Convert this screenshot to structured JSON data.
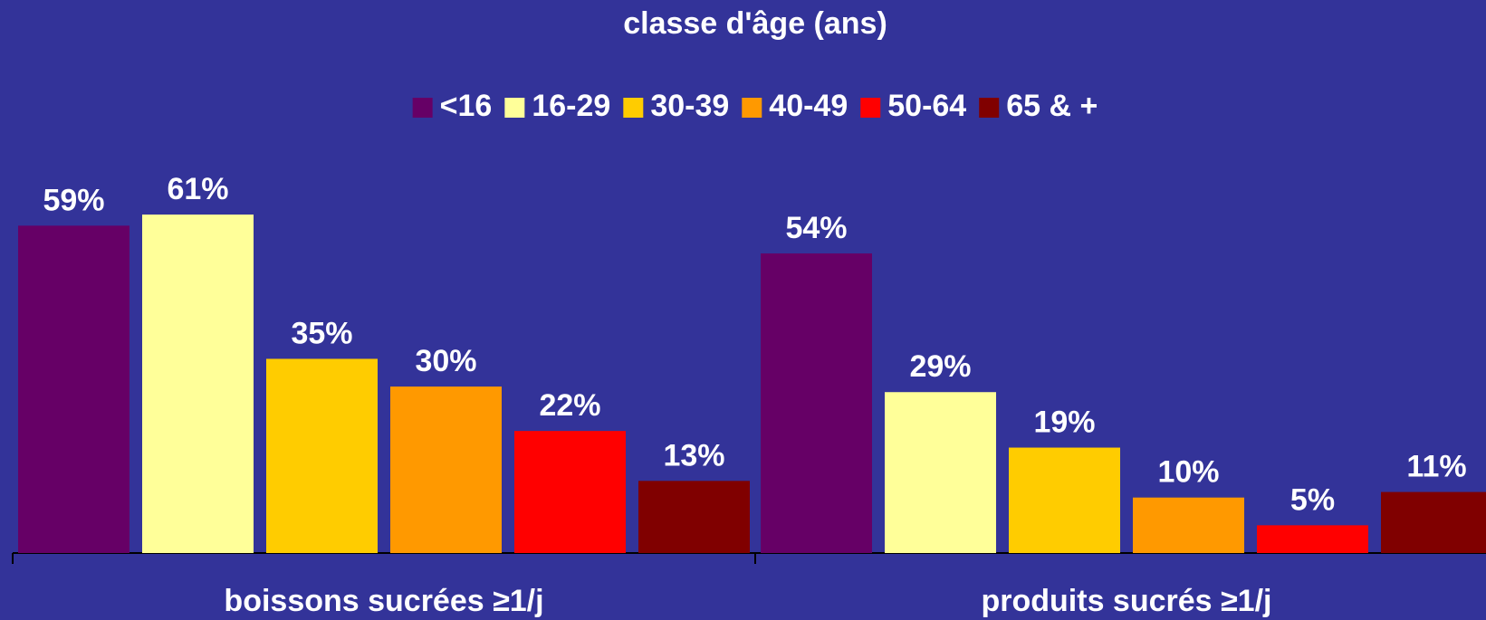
{
  "chart_data": {
    "type": "bar",
    "title": "classe d'âge (ans)",
    "categories": [
      "boissons sucrées ≥1/j",
      "produits sucrés ≥1/j"
    ],
    "series": [
      {
        "name": "<16",
        "color": "#660066",
        "values": [
          59,
          54
        ],
        "value_labels": [
          "59%",
          "54%"
        ]
      },
      {
        "name": "16-29",
        "color": "#FFFF99",
        "values": [
          61,
          29
        ],
        "value_labels": [
          "61%",
          "29%"
        ]
      },
      {
        "name": "30-39",
        "color": "#FFCC00",
        "values": [
          35,
          19
        ],
        "value_labels": [
          "35%",
          "19%"
        ]
      },
      {
        "name": "40-49",
        "color": "#FF9900",
        "values": [
          30,
          10
        ],
        "value_labels": [
          "30%",
          "10%"
        ]
      },
      {
        "name": "50-64",
        "color": "#FF0000",
        "values": [
          22,
          5
        ],
        "value_labels": [
          "22%",
          "5%"
        ]
      },
      {
        "name": "65 & +",
        "color": "#800000",
        "values": [
          13,
          11
        ],
        "value_labels": [
          "13%",
          "11%"
        ]
      }
    ],
    "legend": "top"
  }
}
